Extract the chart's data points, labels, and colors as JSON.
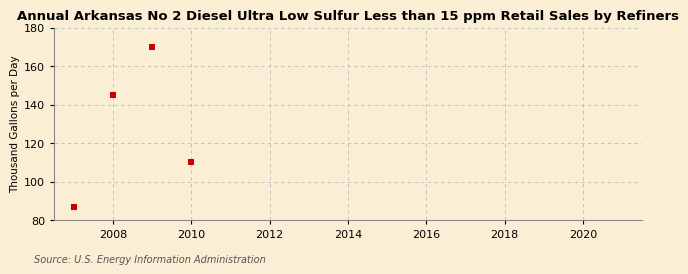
{
  "title": "Annual Arkansas No 2 Diesel Ultra Low Sulfur Less than 15 ppm Retail Sales by Refiners",
  "ylabel": "Thousand Gallons per Day",
  "source": "Source: U.S. Energy Information Administration",
  "x_data": [
    2007,
    2008,
    2009,
    2010
  ],
  "y_data": [
    87,
    145,
    170,
    110
  ],
  "xlim": [
    2006.5,
    2021.5
  ],
  "ylim": [
    80,
    180
  ],
  "yticks": [
    80,
    100,
    120,
    140,
    160,
    180
  ],
  "xticks": [
    2008,
    2010,
    2012,
    2014,
    2016,
    2018,
    2020
  ],
  "marker_color": "#cc0000",
  "marker": "s",
  "marker_size": 4,
  "bg_color": "#faefd4",
  "grid_color": "#bbbbbb",
  "title_fontsize": 9.5,
  "label_fontsize": 7.5,
  "tick_fontsize": 8,
  "source_fontsize": 7
}
